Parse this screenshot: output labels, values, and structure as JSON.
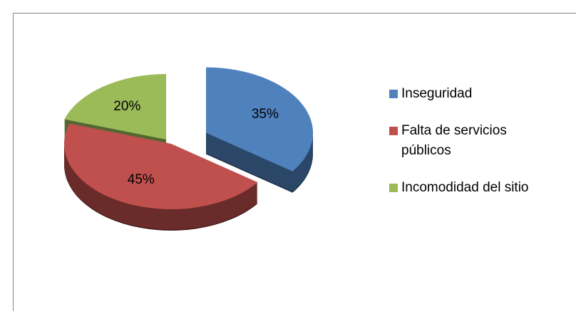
{
  "chart_data": {
    "type": "pie",
    "categories": [
      "Inseguridad",
      "Falta de servicios públicos",
      "Incomodidad del sitio"
    ],
    "values": [
      35,
      45,
      20
    ],
    "value_labels": [
      "35%",
      "45%",
      "20%"
    ],
    "colors": [
      "#4f81bd",
      "#c0504d",
      "#9bbb59"
    ],
    "legend": "right"
  }
}
